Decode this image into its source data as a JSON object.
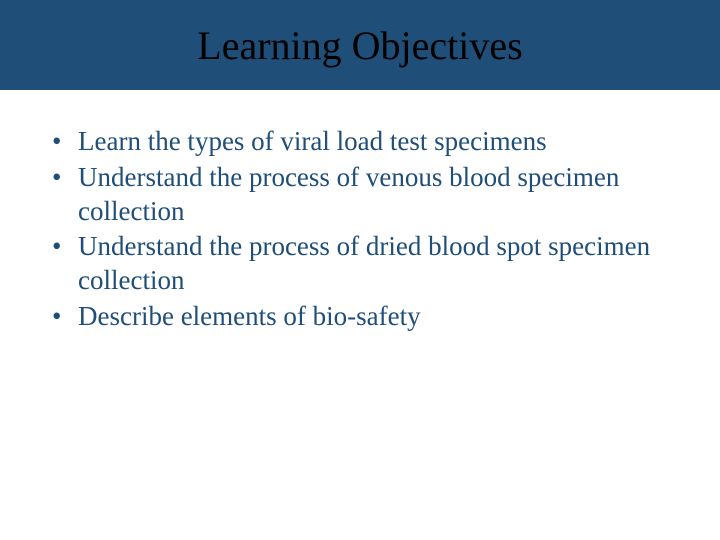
{
  "slide": {
    "title": "Learning Objectives",
    "title_bg_color": "#1f4e79",
    "title_text_color": "#000000",
    "title_font_size": 40,
    "body_text_color": "#1f4e79",
    "body_font_size": 27,
    "background_color": "#ffffff",
    "bullets": [
      "Learn the types of viral load test specimens",
      "Understand the process of venous blood specimen collection",
      "Understand the process of dried blood spot specimen collection",
      "Describe elements of bio-safety"
    ]
  }
}
